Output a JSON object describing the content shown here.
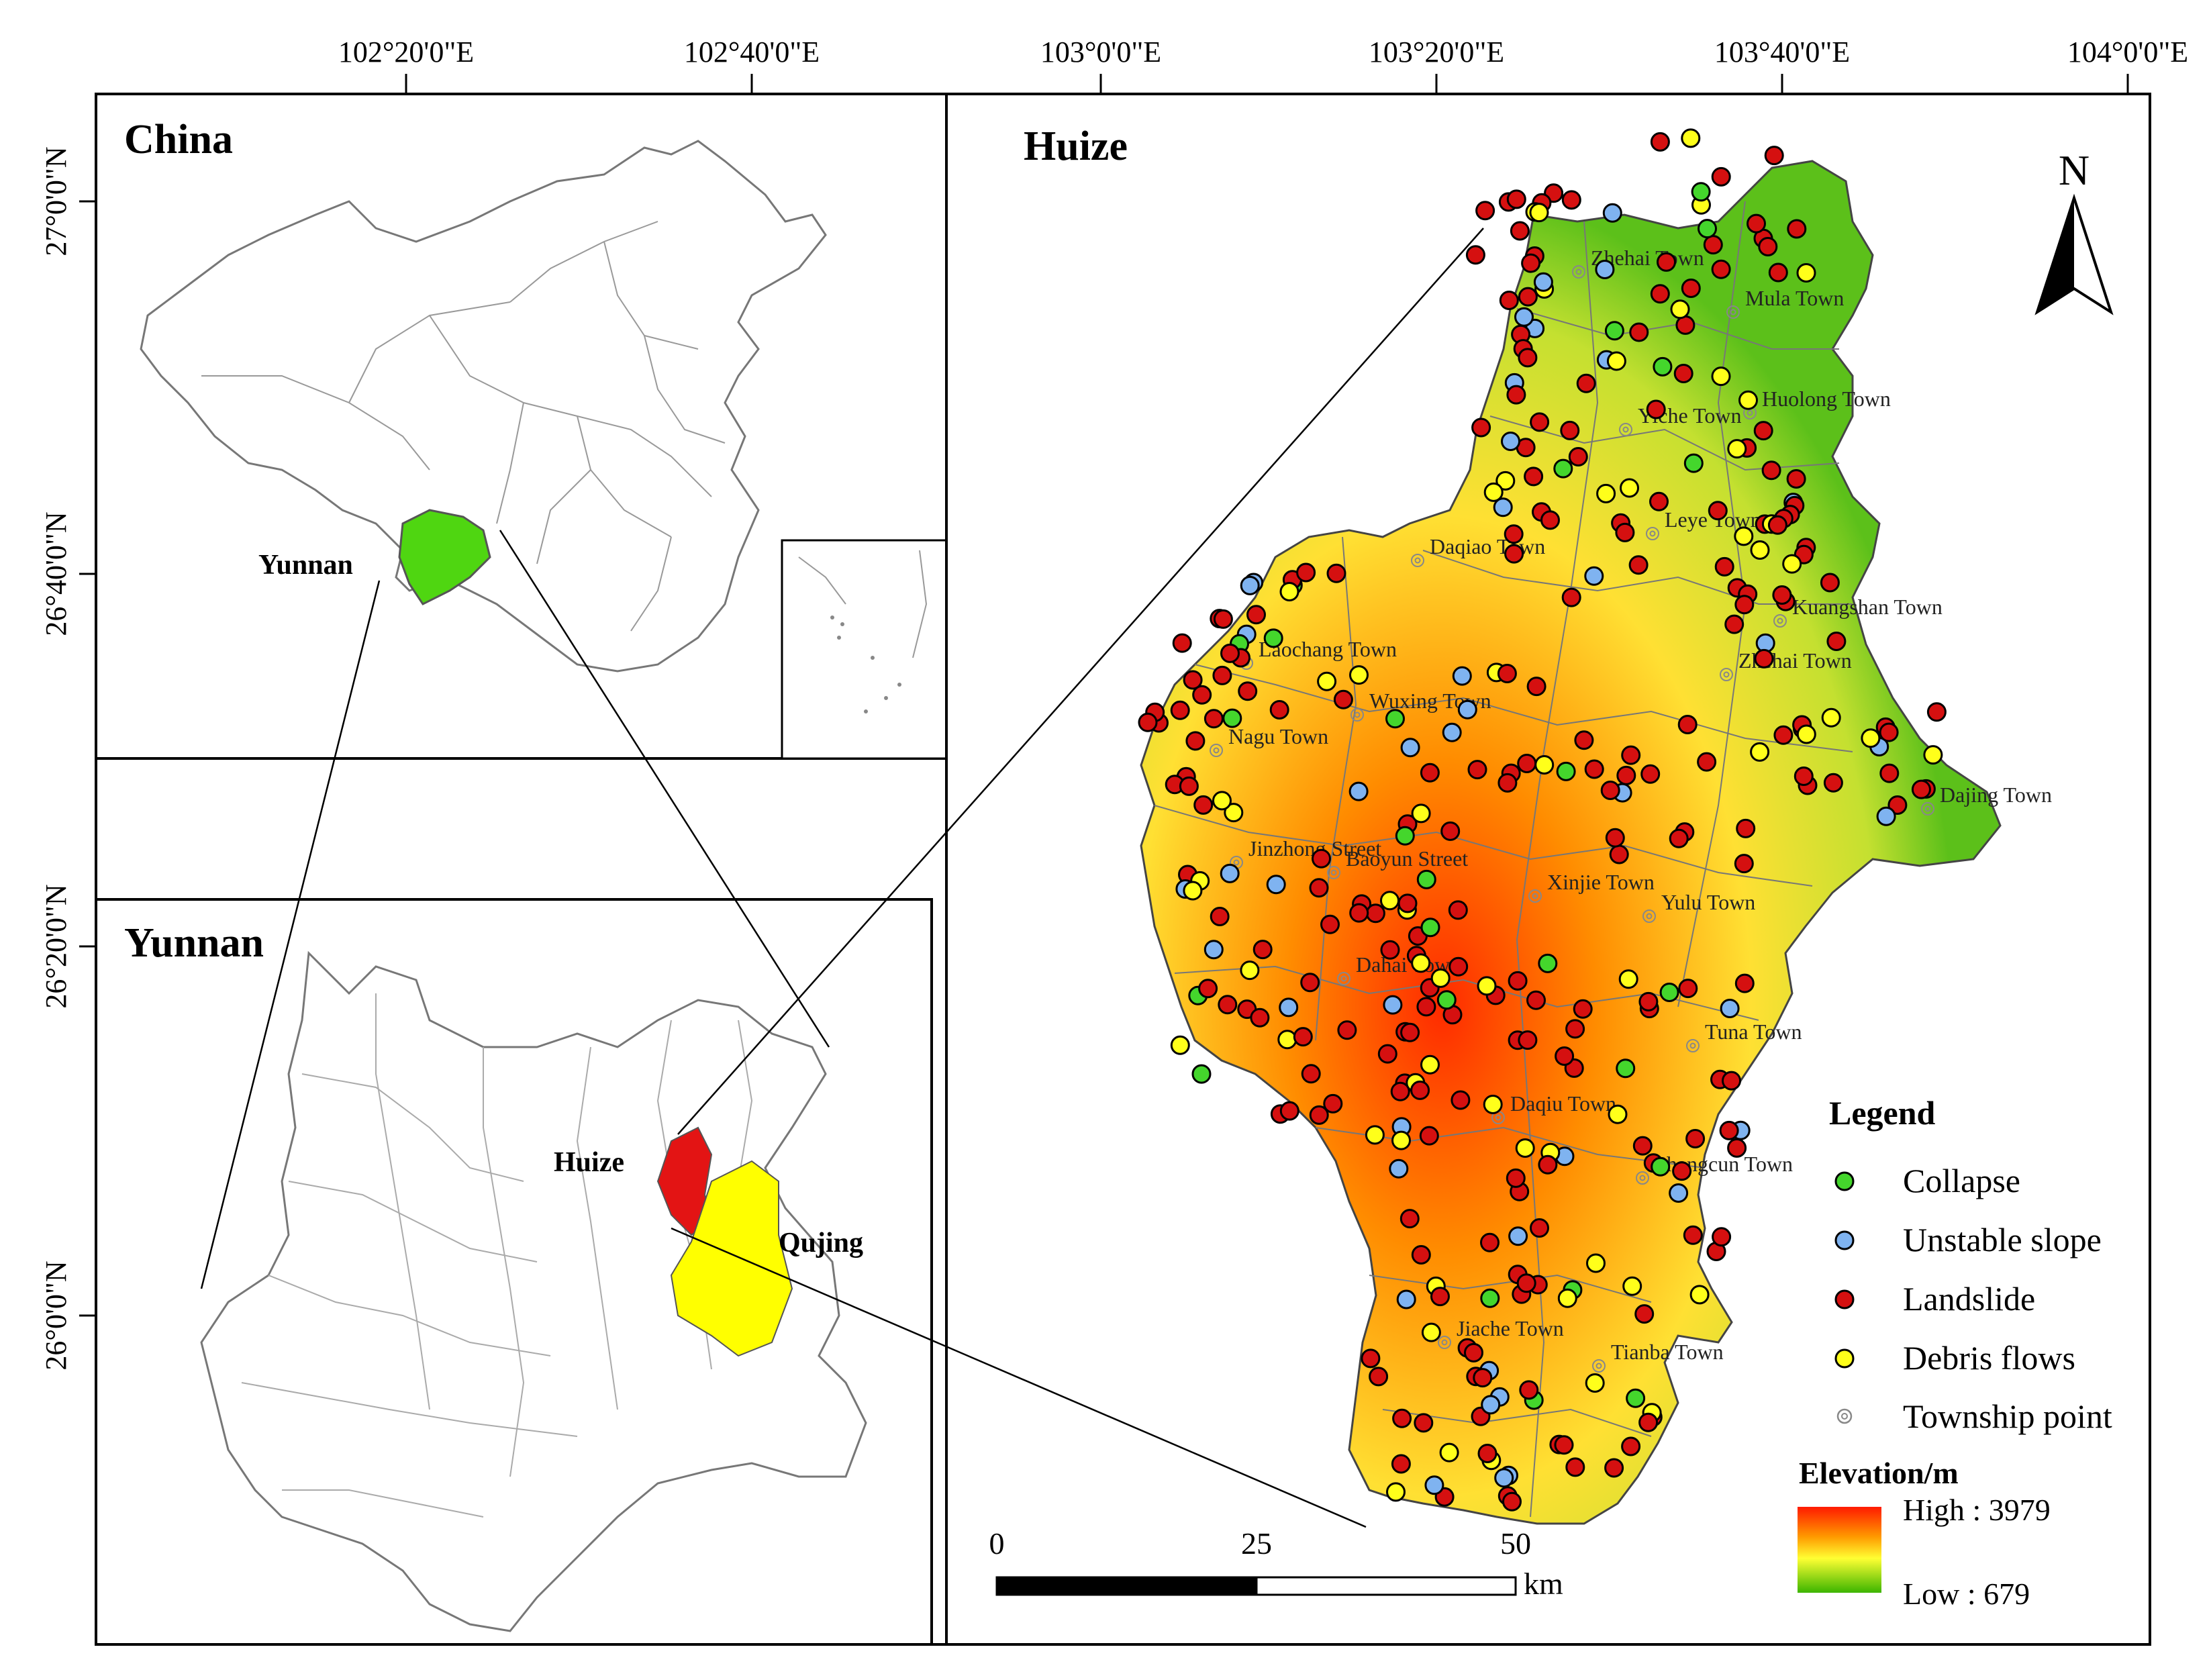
{
  "frame": {
    "top_longitude_labels": [
      "102°20'0\"E",
      "102°40'0\"E",
      "103°0'0\"E",
      "103°20'0\"E",
      "103°40'0\"E",
      "104°0'0\"E"
    ],
    "left_latitude_labels": [
      "27°0'0\"N",
      "26°40'0\"N",
      "26°20'0\"N",
      "26°0'0\"N"
    ]
  },
  "china_panel": {
    "title": "China",
    "highlight_label": "Yunnan",
    "highlight_color": "#4fd611"
  },
  "yunnan_panel": {
    "title": "Yunnan",
    "huize_label": "Huize",
    "huize_color": "#e31414",
    "qujing_label": "Qujing",
    "qujing_color": "#ffff00"
  },
  "huize_panel": {
    "title": "Huize",
    "north_label": "N",
    "towns": [
      "Zhehai Town",
      "Mula Town",
      "Yiche Town",
      "Huolong Town",
      "Leye Town",
      "Daqiao Town",
      "Kuangshan Town",
      "Laochang Town",
      "Zhehai Town",
      "Wuxing Town",
      "Nagu Town",
      "Dajing Town",
      "Jinzhong Street",
      "Baoyun Street",
      "Xinjie Town",
      "Yulu Town",
      "Dahai Town",
      "Tuna Town",
      "Daqiu Town",
      "Shangcun Town",
      "Jiache Town",
      "Tianba Town"
    ]
  },
  "legend": {
    "title": "Legend",
    "items": [
      {
        "label": "Collapse",
        "color": "#44d62c"
      },
      {
        "label": "Unstable slope",
        "color": "#7fb3f0"
      },
      {
        "label": "Landslide",
        "color": "#d51010"
      },
      {
        "label": "Debris flows",
        "color": "#ffff1a"
      },
      {
        "label": "Township point",
        "color": "#888888"
      }
    ],
    "elevation_title": "Elevation/m",
    "high_label": "High : 3979",
    "low_label": "Low : 679",
    "elevation_high_m": 3979,
    "elevation_low_m": 679
  },
  "scale_bar": {
    "labels": [
      "0",
      "25",
      "50"
    ],
    "unit": "km"
  }
}
